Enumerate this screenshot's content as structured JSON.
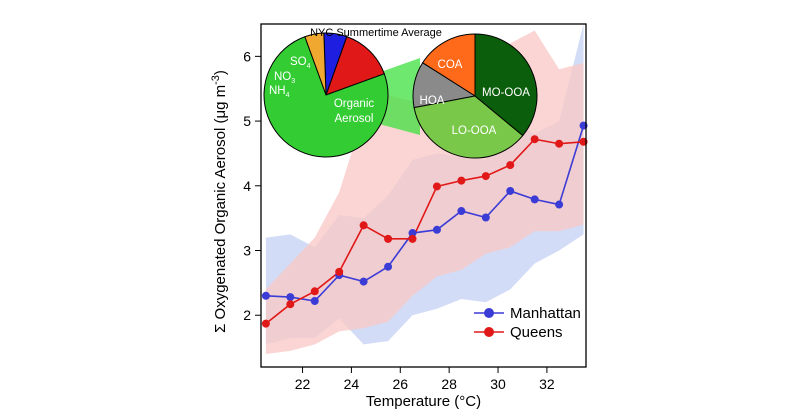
{
  "chart_data": {
    "type": "line",
    "xlabel": "Temperature (°C)",
    "ylabel": "Σ Oxygenated Organic Aerosol (μg m",
    "ylabel_sup": "-3",
    "ylabel_end": ")",
    "xlim": [
      20.3,
      33.6
    ],
    "ylim": [
      1.2,
      6.5
    ],
    "xticks": [
      22,
      24,
      26,
      28,
      30,
      32
    ],
    "yticks": [
      2,
      3,
      4,
      5,
      6
    ],
    "x": [
      20.5,
      21.5,
      22.5,
      23.5,
      24.5,
      25.5,
      26.5,
      27.5,
      28.5,
      29.5,
      30.5,
      31.5,
      32.5,
      33.5
    ],
    "series": [
      {
        "name": "Manhattan",
        "color": "#3b3bd6",
        "band_color": "#c7d2f5",
        "values": [
          2.3,
          2.28,
          2.22,
          2.62,
          2.52,
          2.75,
          3.27,
          3.32,
          3.61,
          3.51,
          3.92,
          3.79,
          3.71,
          4.93
        ],
        "band_lower": [
          1.55,
          1.65,
          1.65,
          1.95,
          1.55,
          1.6,
          2.0,
          2.1,
          2.25,
          2.2,
          2.4,
          2.8,
          3.0,
          3.25
        ],
        "band_upper": [
          3.2,
          3.25,
          3.05,
          3.55,
          3.5,
          3.85,
          4.4,
          4.5,
          4.45,
          4.4,
          5.05,
          4.8,
          5.0,
          6.5
        ]
      },
      {
        "name": "Queens",
        "color": "#e11818",
        "band_color": "#f8c9c6",
        "values": [
          1.87,
          2.17,
          2.37,
          2.67,
          3.39,
          3.18,
          3.18,
          3.99,
          4.08,
          4.15,
          4.32,
          4.72,
          4.65,
          4.68
        ],
        "band_lower": [
          1.4,
          1.45,
          1.55,
          1.75,
          1.8,
          1.9,
          2.3,
          2.6,
          2.7,
          2.95,
          3.05,
          3.3,
          3.3,
          3.4
        ],
        "band_upper": [
          2.4,
          2.8,
          3.2,
          3.9,
          5.1,
          5.4,
          5.3,
          5.6,
          5.6,
          5.95,
          6.2,
          6.4,
          5.8,
          5.9
        ]
      }
    ],
    "legend": {
      "position": "bottom-right",
      "entries": [
        "Manhattan",
        "Queens"
      ]
    },
    "inset_pies": {
      "title": "NYC Summertime Average",
      "total_pie": {
        "slices": [
          {
            "label": "Organic Aerosol",
            "value": 75,
            "color": "#33cc33"
          },
          {
            "label": "NH4",
            "value": 5,
            "color": "#f0a830"
          },
          {
            "label": "NO3",
            "value": 6,
            "color": "#1e1ee0"
          },
          {
            "label": "SO4",
            "value": 14,
            "color": "#e01818"
          }
        ]
      },
      "oa_pie": {
        "slices": [
          {
            "label": "MO-OOA",
            "value": 36,
            "color": "#0b5e0b"
          },
          {
            "label": "LO-OOA",
            "value": 36,
            "color": "#7ac84a"
          },
          {
            "label": "HOA",
            "value": 12,
            "color": "#8a8a8a"
          },
          {
            "label": "COA",
            "value": 16,
            "color": "#ff6a1a"
          }
        ]
      }
    }
  }
}
